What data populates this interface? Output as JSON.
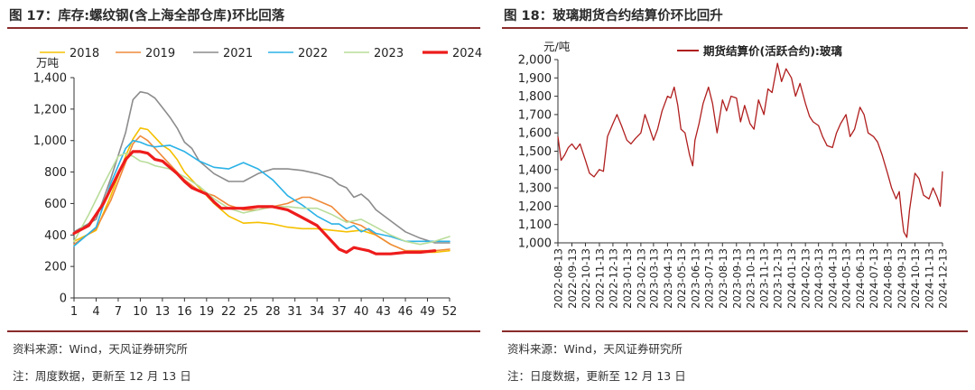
{
  "figures": [
    {
      "title": "图 17：库存:螺纹钢(含上海全部仓库)环比回落",
      "source": "资料来源：Wind，天风证券研究所",
      "note": "注：周度数据，更新至 12 月 13 日"
    },
    {
      "title": "图 18：玻璃期货合约结算价环比回升",
      "source": "资料来源：Wind，天风证券研究所",
      "note": "注：日度数据，更新至 12 月 13 日"
    }
  ],
  "chart_data": [
    {
      "type": "line",
      "ylabel": "万吨",
      "ylim": [
        0,
        1400
      ],
      "yticks": [
        0,
        200,
        400,
        600,
        800,
        1000,
        1200,
        1400
      ],
      "ytick_labels": [
        "0",
        "200",
        "400",
        "600",
        "800",
        "1,000",
        "1,200",
        "1,400"
      ],
      "xlim": [
        1,
        52
      ],
      "xticks": [
        1,
        4,
        7,
        10,
        13,
        16,
        19,
        22,
        25,
        28,
        31,
        34,
        37,
        40,
        43,
        46,
        49,
        52
      ],
      "legend_position": "top",
      "series": [
        {
          "name": "2018",
          "color": "#f5c000",
          "width": 1.6,
          "x": [
            1,
            4,
            6,
            8,
            9,
            10,
            11,
            12,
            13,
            14,
            15,
            16,
            18,
            20,
            22,
            24,
            26,
            28,
            30,
            32,
            34,
            36,
            38,
            40,
            42,
            44,
            46,
            48,
            50,
            52
          ],
          "y": [
            360,
            430,
            650,
            900,
            1010,
            1080,
            1070,
            1020,
            970,
            940,
            880,
            800,
            700,
            600,
            520,
            475,
            480,
            470,
            450,
            440,
            440,
            430,
            420,
            430,
            400,
            340,
            300,
            290,
            290,
            300
          ]
        },
        {
          "name": "2019",
          "color": "#ef8a3a",
          "width": 1.6,
          "x": [
            1,
            4,
            6,
            8,
            9,
            10,
            11,
            12,
            14,
            16,
            18,
            20,
            22,
            24,
            26,
            28,
            30,
            31,
            32,
            33,
            34,
            36,
            38,
            40,
            42,
            44,
            46,
            48,
            50,
            52
          ],
          "y": [
            340,
            440,
            620,
            860,
            980,
            1030,
            1000,
            950,
            850,
            750,
            680,
            650,
            590,
            560,
            560,
            580,
            600,
            620,
            640,
            640,
            620,
            580,
            490,
            460,
            400,
            340,
            300,
            300,
            300,
            310
          ]
        },
        {
          "name": "2021",
          "color": "#8c8c8c",
          "width": 1.6,
          "x": [
            1,
            4,
            6,
            8,
            9,
            10,
            11,
            12,
            13,
            14,
            15,
            16,
            17,
            18,
            20,
            22,
            24,
            26,
            28,
            30,
            32,
            34,
            36,
            37,
            38,
            39,
            40,
            41,
            42,
            44,
            46,
            48,
            50,
            52
          ],
          "y": [
            420,
            500,
            760,
            1050,
            1260,
            1310,
            1300,
            1270,
            1210,
            1150,
            1080,
            990,
            950,
            870,
            790,
            740,
            740,
            790,
            820,
            820,
            810,
            790,
            760,
            720,
            700,
            640,
            660,
            620,
            560,
            490,
            420,
            380,
            350,
            350
          ]
        },
        {
          "name": "2022",
          "color": "#2bb2e6",
          "width": 1.6,
          "x": [
            1,
            4,
            6,
            8,
            9,
            10,
            11,
            12,
            14,
            16,
            18,
            20,
            22,
            24,
            26,
            28,
            30,
            32,
            34,
            36,
            37,
            38,
            39,
            40,
            41,
            42,
            44,
            46,
            48,
            50,
            52
          ],
          "y": [
            330,
            450,
            730,
            950,
            1000,
            990,
            970,
            960,
            970,
            930,
            870,
            830,
            820,
            860,
            820,
            750,
            650,
            590,
            520,
            470,
            470,
            440,
            460,
            420,
            440,
            410,
            390,
            360,
            360,
            360,
            360
          ]
        },
        {
          "name": "2023",
          "color": "#b9dd9a",
          "width": 1.6,
          "x": [
            1,
            3,
            5,
            7,
            8,
            9,
            10,
            11,
            12,
            14,
            16,
            18,
            20,
            22,
            24,
            26,
            28,
            30,
            32,
            34,
            36,
            38,
            40,
            42,
            44,
            46,
            48,
            50,
            52
          ],
          "y": [
            360,
            530,
            720,
            900,
            920,
            900,
            870,
            860,
            840,
            820,
            770,
            710,
            630,
            570,
            540,
            560,
            580,
            580,
            570,
            570,
            530,
            480,
            500,
            450,
            400,
            360,
            340,
            360,
            390
          ]
        },
        {
          "name": "2024",
          "color": "#ee1c1c",
          "width": 3.2,
          "x": [
            1,
            3,
            5,
            7,
            8,
            9,
            10,
            11,
            12,
            13,
            14,
            15,
            16,
            17,
            18,
            19,
            20,
            21,
            22,
            24,
            26,
            28,
            30,
            32,
            34,
            35,
            36,
            37,
            38,
            39,
            40,
            41,
            42,
            43,
            44,
            46,
            48,
            50
          ],
          "y": [
            410,
            460,
            600,
            790,
            880,
            930,
            930,
            920,
            880,
            870,
            830,
            790,
            740,
            700,
            680,
            660,
            610,
            570,
            570,
            570,
            580,
            580,
            560,
            510,
            460,
            410,
            360,
            310,
            290,
            320,
            310,
            300,
            280,
            280,
            280,
            290,
            290,
            300
          ]
        }
      ]
    },
    {
      "type": "line",
      "ylabel": "元/吨",
      "ylim": [
        1000,
        2000
      ],
      "yticks": [
        1000,
        1100,
        1200,
        1300,
        1400,
        1500,
        1600,
        1700,
        1800,
        1900,
        2000
      ],
      "ytick_labels": [
        "1,000",
        "1,100",
        "1,200",
        "1,300",
        "1,400",
        "1,500",
        "1,600",
        "1,700",
        "1,800",
        "1,900",
        "2,000"
      ],
      "x_dates": [
        "2022-08-13",
        "2022-09-13",
        "2022-10-13",
        "2022-11-13",
        "2022-12-13",
        "2023-01-13",
        "2023-02-13",
        "2023-03-13",
        "2023-04-13",
        "2023-05-13",
        "2023-06-13",
        "2023-07-13",
        "2023-08-13",
        "2023-09-13",
        "2023-10-13",
        "2023-11-13",
        "2023-12-13",
        "2024-01-13",
        "2024-02-13",
        "2024-03-13",
        "2024-04-13",
        "2024-05-13",
        "2024-06-13",
        "2024-07-13",
        "2024-08-13",
        "2024-09-13",
        "2024-10-13",
        "2024-11-13",
        "2024-12-13"
      ],
      "legend_position": "top",
      "series": [
        {
          "name": "期货结算价(活跃合约):玻璃",
          "color": "#b01e1e",
          "width": 1.3,
          "x": [
            "2022-08-13",
            "2022-08-20",
            "2022-08-28",
            "2022-09-05",
            "2022-09-13",
            "2022-09-22",
            "2022-10-01",
            "2022-10-13",
            "2022-10-22",
            "2022-11-01",
            "2022-11-13",
            "2022-11-22",
            "2022-12-01",
            "2022-12-13",
            "2022-12-22",
            "2023-01-01",
            "2023-01-13",
            "2023-01-22",
            "2023-02-01",
            "2023-02-13",
            "2023-02-22",
            "2023-03-01",
            "2023-03-13",
            "2023-03-22",
            "2023-04-01",
            "2023-04-13",
            "2023-04-20",
            "2023-04-28",
            "2023-05-06",
            "2023-05-13",
            "2023-05-22",
            "2023-06-01",
            "2023-06-08",
            "2023-06-13",
            "2023-06-22",
            "2023-07-01",
            "2023-07-13",
            "2023-07-22",
            "2023-08-01",
            "2023-08-13",
            "2023-08-22",
            "2023-09-01",
            "2023-09-13",
            "2023-09-22",
            "2023-10-01",
            "2023-10-13",
            "2023-10-22",
            "2023-11-01",
            "2023-11-13",
            "2023-11-22",
            "2023-12-01",
            "2023-12-13",
            "2023-12-22",
            "2024-01-01",
            "2024-01-13",
            "2024-01-22",
            "2024-02-01",
            "2024-02-13",
            "2024-02-22",
            "2024-03-01",
            "2024-03-13",
            "2024-03-22",
            "2024-04-01",
            "2024-04-13",
            "2024-04-22",
            "2024-05-01",
            "2024-05-13",
            "2024-05-22",
            "2024-06-01",
            "2024-06-13",
            "2024-06-22",
            "2024-07-01",
            "2024-07-13",
            "2024-07-22",
            "2024-08-01",
            "2024-08-13",
            "2024-08-22",
            "2024-09-01",
            "2024-09-08",
            "2024-09-13",
            "2024-09-18",
            "2024-09-25",
            "2024-10-01",
            "2024-10-08",
            "2024-10-13",
            "2024-10-22",
            "2024-11-01",
            "2024-11-13",
            "2024-11-22",
            "2024-12-01",
            "2024-12-08",
            "2024-12-13"
          ],
          "y": [
            1580,
            1450,
            1480,
            1520,
            1540,
            1510,
            1540,
            1450,
            1380,
            1360,
            1400,
            1390,
            1580,
            1650,
            1700,
            1640,
            1560,
            1540,
            1570,
            1600,
            1700,
            1650,
            1560,
            1620,
            1720,
            1800,
            1790,
            1850,
            1750,
            1620,
            1600,
            1480,
            1420,
            1560,
            1650,
            1760,
            1850,
            1760,
            1600,
            1780,
            1720,
            1800,
            1790,
            1660,
            1750,
            1650,
            1620,
            1780,
            1700,
            1840,
            1820,
            1980,
            1880,
            1950,
            1900,
            1800,
            1870,
            1760,
            1690,
            1660,
            1640,
            1580,
            1530,
            1520,
            1600,
            1650,
            1700,
            1580,
            1620,
            1740,
            1700,
            1600,
            1580,
            1550,
            1480,
            1380,
            1300,
            1240,
            1280,
            1160,
            1060,
            1030,
            1180,
            1300,
            1380,
            1350,
            1260,
            1240,
            1300,
            1250,
            1200,
            1390
          ]
        }
      ]
    }
  ]
}
